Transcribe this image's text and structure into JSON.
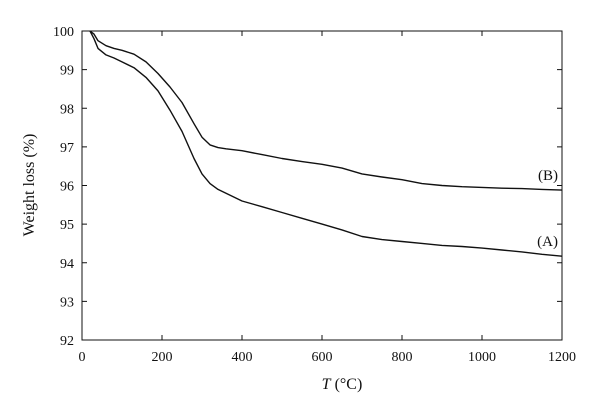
{
  "chart_data": {
    "type": "line",
    "title": "",
    "ylabel": "Weight loss (%)",
    "xlabel": {
      "var": "T",
      "unit": " (°C)"
    },
    "xlim": [
      0,
      1200
    ],
    "ylim": [
      92,
      100
    ],
    "xticks": [
      0,
      200,
      400,
      600,
      800,
      1000,
      1200
    ],
    "yticks": [
      92,
      93,
      94,
      95,
      96,
      97,
      98,
      99,
      100
    ],
    "grid": false,
    "legend": "none",
    "series": [
      {
        "name": "(A)",
        "color": "#111111",
        "x": [
          20,
          30,
          40,
          60,
          80,
          100,
          130,
          160,
          190,
          220,
          250,
          280,
          300,
          320,
          340,
          360,
          400,
          450,
          500,
          550,
          600,
          650,
          700,
          750,
          800,
          850,
          900,
          950,
          1000,
          1050,
          1100,
          1150,
          1200
        ],
        "y": [
          100,
          99.8,
          99.55,
          99.38,
          99.3,
          99.2,
          99.05,
          98.8,
          98.45,
          97.95,
          97.4,
          96.7,
          96.3,
          96.05,
          95.9,
          95.8,
          95.6,
          95.45,
          95.3,
          95.15,
          95.0,
          94.85,
          94.68,
          94.6,
          94.55,
          94.5,
          94.45,
          94.42,
          94.38,
          94.33,
          94.28,
          94.22,
          94.17
        ]
      },
      {
        "name": "(B)",
        "color": "#111111",
        "x": [
          20,
          30,
          40,
          60,
          80,
          100,
          130,
          160,
          190,
          220,
          250,
          280,
          300,
          320,
          340,
          360,
          400,
          450,
          500,
          550,
          600,
          650,
          700,
          750,
          800,
          850,
          900,
          950,
          1000,
          1050,
          1100,
          1150,
          1200
        ],
        "y": [
          100,
          99.92,
          99.75,
          99.62,
          99.55,
          99.5,
          99.4,
          99.2,
          98.9,
          98.55,
          98.15,
          97.6,
          97.25,
          97.05,
          96.98,
          96.95,
          96.9,
          96.8,
          96.7,
          96.62,
          96.55,
          96.45,
          96.3,
          96.22,
          96.15,
          96.05,
          96.0,
          95.97,
          95.95,
          95.93,
          95.92,
          95.9,
          95.88
        ]
      }
    ]
  }
}
